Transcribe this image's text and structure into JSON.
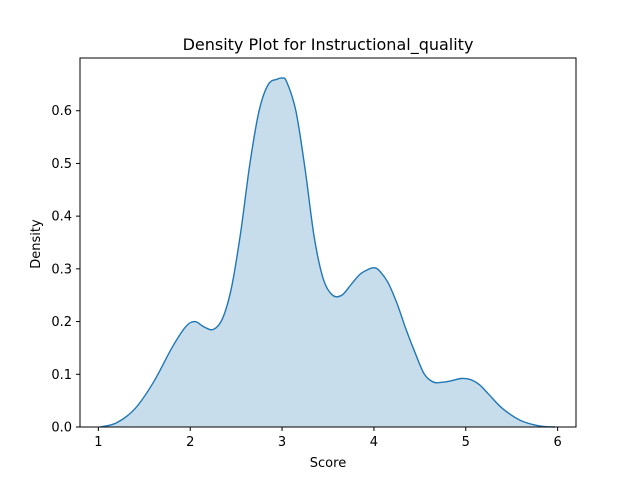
{
  "chart_data": {
    "type": "area",
    "title": "Density Plot for Instructional_quality",
    "xlabel": "Score",
    "ylabel": "Density",
    "xlim": [
      0.8,
      6.2
    ],
    "ylim": [
      0.0,
      0.7
    ],
    "xticks": [
      1,
      2,
      3,
      4,
      5,
      6
    ],
    "yticks": [
      0.0,
      0.1,
      0.2,
      0.3,
      0.4,
      0.5,
      0.6
    ],
    "ytick_labels": [
      "0.0",
      "0.1",
      "0.2",
      "0.3",
      "0.4",
      "0.5",
      "0.6"
    ],
    "grid": false,
    "legend": "none",
    "series": [
      {
        "color": "#1f77b4",
        "fill_color": "#1f77b4",
        "fill_opacity": 0.25,
        "x": [
          1.02,
          1.2,
          1.4,
          1.6,
          1.8,
          1.95,
          2.05,
          2.15,
          2.25,
          2.35,
          2.45,
          2.55,
          2.65,
          2.75,
          2.85,
          2.95,
          3.0,
          3.05,
          3.15,
          3.25,
          3.35,
          3.45,
          3.55,
          3.65,
          3.75,
          3.85,
          3.95,
          4.0,
          4.05,
          4.15,
          4.25,
          4.35,
          4.45,
          4.55,
          4.65,
          4.75,
          4.85,
          4.95,
          5.05,
          5.15,
          5.25,
          5.4,
          5.6,
          5.8,
          5.97
        ],
        "y": [
          0.0,
          0.008,
          0.035,
          0.085,
          0.15,
          0.19,
          0.2,
          0.19,
          0.185,
          0.205,
          0.265,
          0.37,
          0.5,
          0.6,
          0.65,
          0.66,
          0.662,
          0.655,
          0.6,
          0.49,
          0.36,
          0.28,
          0.25,
          0.25,
          0.27,
          0.29,
          0.3,
          0.302,
          0.298,
          0.275,
          0.235,
          0.185,
          0.14,
          0.1,
          0.085,
          0.085,
          0.088,
          0.092,
          0.09,
          0.08,
          0.062,
          0.035,
          0.012,
          0.002,
          0.0
        ]
      }
    ]
  }
}
